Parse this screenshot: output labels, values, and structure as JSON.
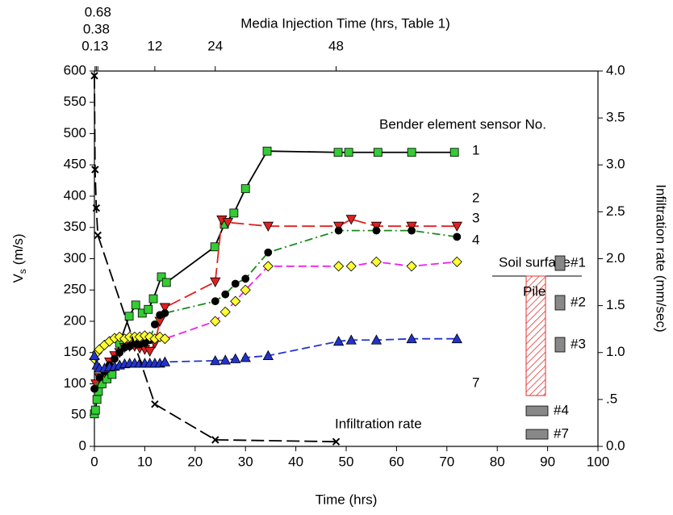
{
  "chart_data": {
    "type": "line",
    "title": "Media Injection Time (hrs, Table 1)",
    "xlabel": "Time (hrs)",
    "ylabel": [
      "V",
      "s",
      "(m/s)"
    ],
    "y2label": "Infiltration rate (mm/sec)",
    "xlim": [
      0,
      100
    ],
    "xticks": [
      0,
      10,
      20,
      30,
      40,
      50,
      60,
      70,
      80,
      90,
      100
    ],
    "x2ticks": [
      0.13,
      0.38,
      0.68,
      12,
      24,
      48
    ],
    "ylim": [
      0,
      600
    ],
    "yticks": [
      0,
      50,
      100,
      150,
      200,
      250,
      300,
      350,
      400,
      450,
      500,
      550,
      600
    ],
    "y2lim": [
      0,
      4
    ],
    "y2ticks": [
      {
        "value": 0,
        "label": "0.0"
      },
      {
        "value": 0.5,
        "label": ".5"
      },
      {
        "value": 1,
        "label": "1.0"
      },
      {
        "value": 1.5,
        "label": "1.5"
      },
      {
        "value": 2,
        "label": "2.0"
      },
      {
        "value": 2.5,
        "label": "2.5"
      },
      {
        "value": 3,
        "label": "3.0"
      },
      {
        "value": 3.5,
        "label": "3.5"
      },
      {
        "value": 4,
        "label": "4.0"
      }
    ],
    "legend_title": "Bender element sensor No.",
    "series": [
      {
        "name": "1",
        "color": "#33cc33",
        "line_color": "#000000",
        "marker": "square",
        "dash": "solid",
        "x": [
          0,
          0.2,
          0.5,
          0.8,
          1.5,
          2.5,
          3.5,
          5,
          6.9,
          8.2,
          9.5,
          10.7,
          11.7,
          13.3,
          14.3,
          23.9,
          25.8,
          27.7,
          30,
          34.3,
          48.4,
          50.5,
          56.3,
          63,
          71.5
        ],
        "values": [
          52,
          58,
          75,
          88,
          100,
          108,
          115,
          165,
          208,
          226,
          213,
          219,
          236,
          271,
          262,
          319,
          355,
          373,
          412,
          472,
          470,
          470,
          470,
          470,
          470
        ]
      },
      {
        "name": "2",
        "color": "#e02020",
        "line_color": "#e02020",
        "marker": "triangle-down",
        "dash": "long-dash",
        "x": [
          0.3,
          1,
          2,
          3,
          4,
          5,
          6,
          7,
          8,
          9,
          10,
          11,
          12,
          13,
          14,
          24,
          25.3,
          26.5,
          34.5,
          48.5,
          51,
          56,
          63,
          72
        ],
        "values": [
          100,
          110,
          118,
          135,
          145,
          150,
          158,
          160,
          160,
          157,
          155,
          152,
          165,
          200,
          222,
          263,
          362,
          358,
          352,
          352,
          363,
          352,
          352,
          352
        ]
      },
      {
        "name": "3",
        "color": "#000000",
        "line_color": "#1a8a1a",
        "marker": "circle",
        "dash": "dash-dot",
        "x": [
          0,
          1,
          2,
          3,
          4,
          5,
          6,
          7,
          8,
          9,
          10,
          11,
          12,
          13,
          14,
          24,
          26,
          28,
          30,
          34.5,
          48.5,
          56,
          63,
          72
        ],
        "values": [
          92,
          110,
          120,
          130,
          140,
          150,
          158,
          160,
          165,
          163,
          165,
          170,
          195,
          210,
          213,
          232,
          243,
          260,
          268,
          310,
          345,
          345,
          345,
          335
        ]
      },
      {
        "name": "4",
        "color": "#ffff33",
        "line_color": "#ee22ee",
        "marker": "diamond",
        "dash": "dash",
        "x": [
          0,
          0.5,
          1,
          2,
          3,
          4,
          5,
          6,
          7,
          8,
          9,
          10,
          11,
          12,
          13,
          14,
          24,
          26,
          28,
          30,
          34.5,
          48.5,
          51,
          56,
          63,
          72
        ],
        "values": [
          140,
          150,
          155,
          162,
          168,
          173,
          175,
          172,
          175,
          175,
          175,
          177,
          175,
          172,
          175,
          172,
          200,
          215,
          232,
          250,
          288,
          288,
          288,
          295,
          288,
          295
        ]
      },
      {
        "name": "7",
        "color": "#2233cc",
        "line_color": "#2233cc",
        "marker": "triangle-up",
        "dash": "dash",
        "x": [
          0,
          0.5,
          1,
          2,
          3,
          4,
          5,
          6,
          7,
          8,
          9,
          10,
          11,
          12,
          13,
          14,
          24,
          26,
          28,
          30,
          34.5,
          48.5,
          51,
          56,
          63,
          72
        ],
        "values": [
          145,
          130,
          125,
          125,
          127,
          128,
          130,
          132,
          133,
          133,
          133,
          133,
          133,
          133,
          133,
          135,
          137,
          138,
          140,
          142,
          145,
          168,
          170,
          170,
          172,
          172
        ]
      },
      {
        "name": "Infiltration rate",
        "color": "#000000",
        "line_color": "#000000",
        "marker": "cross",
        "dash": "long-dash",
        "axis": "y2",
        "x": [
          0,
          0.13,
          0.38,
          0.68,
          12,
          24,
          48
        ],
        "values": [
          3.95,
          2.95,
          2.54,
          2.25,
          0.45,
          0.07,
          0.05
        ]
      }
    ],
    "inset": {
      "soil_surface": "Soil surface",
      "pile": "Pile",
      "sensors": [
        "#1",
        "#2",
        "#3",
        "#4",
        "#7"
      ]
    }
  }
}
